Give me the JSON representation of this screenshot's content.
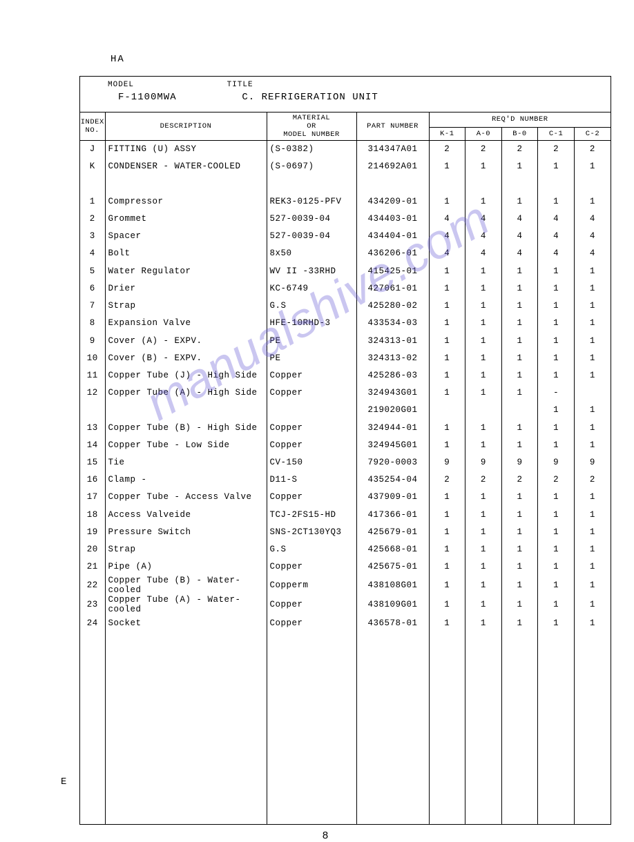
{
  "header_code": "HA",
  "side_letter": "E",
  "page_number": "8",
  "watermark": "manualshive.com",
  "title_section": {
    "model_label": "MODEL",
    "title_label": "TITLE",
    "model_value": "F-1100MWA",
    "title_value": "C. REFRIGERATION UNIT"
  },
  "table_headers": {
    "index_no_1": "INDEX",
    "index_no_2": "NO.",
    "description": "DESCRIPTION",
    "material_1": "MATERIAL",
    "material_2": "OR",
    "material_3": "MODEL NUMBER",
    "part_number": "PART NUMBER",
    "reqd_number": "REQ'D  NUMBER",
    "qty_cols": [
      "K-1",
      "A-0",
      "B-0",
      "C-1",
      "C-2"
    ]
  },
  "rows": [
    {
      "index": "J",
      "desc": "FITTING (U) ASSY",
      "material": "(S-0382)",
      "part": "314347A01",
      "qty": [
        "2",
        "2",
        "2",
        "2",
        "2"
      ]
    },
    {
      "index": "K",
      "desc": "CONDENSER - WATER-COOLED",
      "material": "(S-0697)",
      "part": "214692A01",
      "qty": [
        "1",
        "1",
        "1",
        "1",
        "1"
      ]
    },
    {
      "index": "",
      "desc": "",
      "material": "",
      "part": "",
      "qty": [
        "",
        "",
        "",
        "",
        ""
      ]
    },
    {
      "index": "1",
      "desc": "Compressor",
      "material": "REK3-0125-PFV",
      "part": "434209-01",
      "qty": [
        "1",
        "1",
        "1",
        "1",
        "1"
      ]
    },
    {
      "index": "2",
      "desc": "Grommet",
      "material": "527-0039-04",
      "part": "434403-01",
      "qty": [
        "4",
        "4",
        "4",
        "4",
        "4"
      ]
    },
    {
      "index": "3",
      "desc": "Spacer",
      "material": "527-0039-04",
      "part": "434404-01",
      "qty": [
        "4",
        "4",
        "4",
        "4",
        "4"
      ]
    },
    {
      "index": "4",
      "desc": "Bolt",
      "material": "8x50",
      "part": "436206-01",
      "qty": [
        "4",
        "4",
        "4",
        "4",
        "4"
      ]
    },
    {
      "index": "5",
      "desc": "Water Regulator",
      "material": "WV II -33RHD",
      "part": "415425-01",
      "qty": [
        "1",
        "1",
        "1",
        "1",
        "1"
      ]
    },
    {
      "index": "6",
      "desc": "Drier",
      "material": "KC-6749",
      "part": "427061-01",
      "qty": [
        "1",
        "1",
        "1",
        "1",
        "1"
      ]
    },
    {
      "index": "7",
      "desc": "Strap",
      "material": "G.S",
      "part": "425280-02",
      "qty": [
        "1",
        "1",
        "1",
        "1",
        "1"
      ]
    },
    {
      "index": "8",
      "desc": "Expansion Valve",
      "material": "HFE-10RHD-3",
      "part": "433534-03",
      "qty": [
        "1",
        "1",
        "1",
        "1",
        "1"
      ]
    },
    {
      "index": "9",
      "desc": "Cover (A) - EXPV.",
      "material": "PE",
      "part": "324313-01",
      "qty": [
        "1",
        "1",
        "1",
        "1",
        "1"
      ]
    },
    {
      "index": "10",
      "desc": "Cover (B) - EXPV.",
      "material": "PE",
      "part": "324313-02",
      "qty": [
        "1",
        "1",
        "1",
        "1",
        "1"
      ]
    },
    {
      "index": "11",
      "desc": "Copper Tube (J) - High Side",
      "material": "Copper",
      "part": "425286-03",
      "qty": [
        "1",
        "1",
        "1",
        "1",
        "1"
      ]
    },
    {
      "index": "12",
      "desc": "Copper Tube (A) - High Side",
      "material": "Copper",
      "part": "324943G01",
      "qty": [
        "1",
        "1",
        "1",
        "-",
        ""
      ]
    },
    {
      "index": "",
      "desc": "",
      "material": "",
      "part": "219020G01",
      "qty": [
        "",
        "",
        "",
        "1",
        "1"
      ]
    },
    {
      "index": "13",
      "desc": "Copper Tube (B) - High Side",
      "material": "Copper",
      "part": "324944-01",
      "qty": [
        "1",
        "1",
        "1",
        "1",
        "1"
      ]
    },
    {
      "index": "14",
      "desc": "Copper Tube  - Low Side",
      "material": "Copper",
      "part": "324945G01",
      "qty": [
        "1",
        "1",
        "1",
        "1",
        "1"
      ]
    },
    {
      "index": "15",
      "desc": "Tie",
      "material": "CV-150",
      "part": "7920-0003",
      "qty": [
        "9",
        "9",
        "9",
        "9",
        "9"
      ]
    },
    {
      "index": "16",
      "desc": "Clamp       -",
      "material": "D11-S",
      "part": "435254-04",
      "qty": [
        "2",
        "2",
        "2",
        "2",
        "2"
      ]
    },
    {
      "index": "17",
      "desc": "Copper Tube - Access Valve",
      "material": "Copper",
      "part": "437909-01",
      "qty": [
        "1",
        "1",
        "1",
        "1",
        "1"
      ]
    },
    {
      "index": "18",
      "desc": "Access Valveide",
      "material": "TCJ-2FS15-HD",
      "part": "417366-01",
      "qty": [
        "1",
        "1",
        "1",
        "1",
        "1"
      ]
    },
    {
      "index": "19",
      "desc": "Pressure Switch",
      "material": "SNS-2CT130YQ3",
      "part": "425679-01",
      "qty": [
        "1",
        "1",
        "1",
        "1",
        "1"
      ]
    },
    {
      "index": "20",
      "desc": "Strap",
      "material": "G.S",
      "part": "425668-01",
      "qty": [
        "1",
        "1",
        "1",
        "1",
        "1"
      ]
    },
    {
      "index": "21",
      "desc": "Pipe (A)",
      "material": "Copper",
      "part": "425675-01",
      "qty": [
        "1",
        "1",
        "1",
        "1",
        "1"
      ]
    },
    {
      "index": "22",
      "desc": "Copper Tube (B) - Water-cooled",
      "material": "Copperm",
      "part": "438108G01",
      "qty": [
        "1",
        "1",
        "1",
        "1",
        "1"
      ]
    },
    {
      "index": "23",
      "desc": "Copper Tube (A) - Water-cooled",
      "material": "Copper",
      "part": "438109G01",
      "qty": [
        "1",
        "1",
        "1",
        "1",
        "1"
      ]
    },
    {
      "index": "24",
      "desc": "Socket",
      "material": "Copper",
      "part": "436578-01",
      "qty": [
        "1",
        "1",
        "1",
        "1",
        "1"
      ]
    }
  ],
  "filler_height": 275,
  "colors": {
    "background": "#ffffff",
    "text": "#000000",
    "border": "#000000",
    "watermark": "#6b5fd6"
  }
}
